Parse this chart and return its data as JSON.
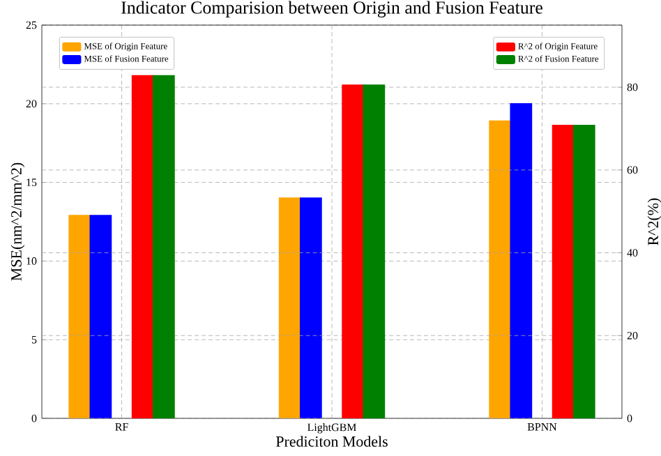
{
  "chart_data": {
    "type": "bar",
    "title": "Indicator Comparision between Origin and Fusion Feature",
    "xlabel": "Prediciton Models",
    "ylabel": "MSE(nm^2/mm^2)",
    "y2label": "R^2(%)",
    "categories": [
      "RF",
      "LightGBM",
      "BPNN"
    ],
    "series": [
      {
        "name": "MSE of Origin Feature",
        "color": "#ffa500",
        "values": [
          12.9,
          14.0,
          18.9
        ]
      },
      {
        "name": "MSE of Fusion Feature",
        "color": "#0000ff",
        "values": [
          12.9,
          14.0,
          20.0
        ]
      },
      {
        "name": "R^2 of Origin Feature",
        "color": "#ff0000",
        "values": [
          82.8,
          80.5,
          70.8
        ],
        "axis": "y2"
      },
      {
        "name": "R^2 of Fusion Feature",
        "color": "#008000",
        "values": [
          82.8,
          80.5,
          70.8
        ],
        "axis": "y2"
      }
    ],
    "ylim": [
      0,
      25
    ],
    "yticks": [
      0,
      5,
      10,
      15,
      20,
      25
    ],
    "y2lim": [
      0,
      95
    ],
    "y2ticks": [
      0,
      20,
      40,
      60,
      80
    ],
    "grid": true,
    "legend": "top left"
  }
}
